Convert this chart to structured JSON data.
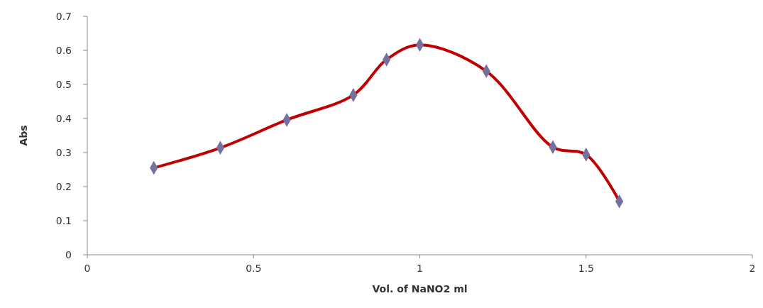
{
  "chart_data": {
    "type": "line",
    "xlabel": "Vol. of NaNO2 ml",
    "ylabel": "Abs",
    "x": [
      0.2,
      0.4,
      0.6,
      0.8,
      0.9,
      1.0,
      1.2,
      1.4,
      1.5,
      1.6
    ],
    "series": [
      {
        "color": "#c00000",
        "values": [
          0.255,
          0.314,
          0.396,
          0.469,
          0.573,
          0.616,
          0.539,
          0.316,
          0.294,
          0.157
        ]
      }
    ],
    "xlim": [
      0,
      2
    ],
    "xticks": [
      0,
      0.5,
      1,
      1.5,
      2
    ],
    "ylim": [
      0,
      0.7
    ],
    "yticks": [
      0,
      0.1,
      0.2,
      0.3,
      0.4,
      0.5,
      0.6,
      0.7
    ],
    "marker": "diamond",
    "grid": false
  }
}
